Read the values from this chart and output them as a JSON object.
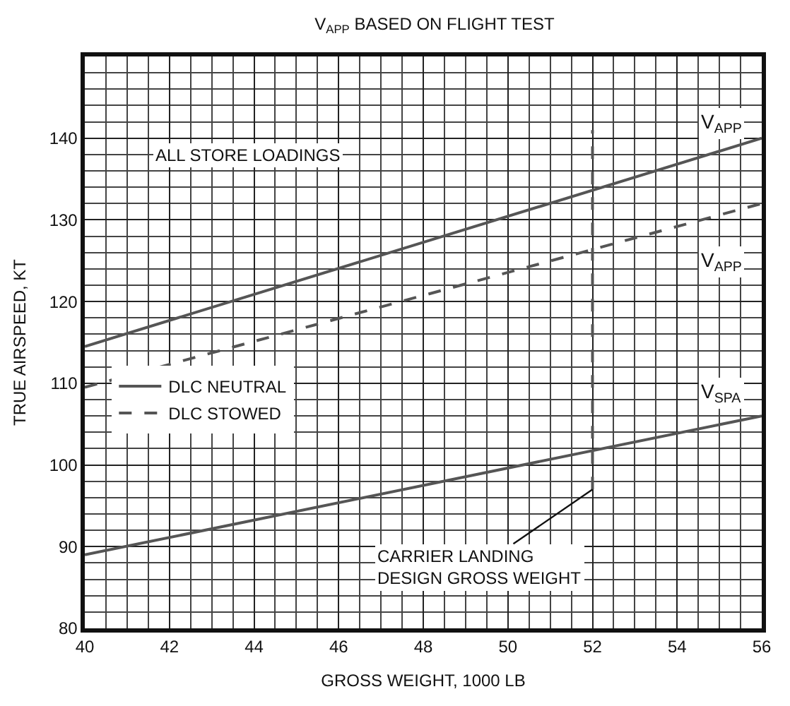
{
  "chart_data": {
    "type": "line",
    "title": "V$_{APP}$ BASED ON FLIGHT TEST",
    "xlabel": "GROSS WEIGHT, 1000 LB",
    "ylabel": "TRUE AIRSPEED, KT",
    "x": [
      40,
      56
    ],
    "series": [
      {
        "name": "DLC NEUTRAL",
        "color": "#555555",
        "values": [
          114.5,
          140
        ],
        "line_style": "solid"
      },
      {
        "name": "DLC STOWED",
        "color": "#555555",
        "values": [
          109.5,
          132
        ],
        "line_style": "dashed"
      },
      {
        "color": "#555555",
        "values": [
          89,
          106
        ],
        "line_style": "solid"
      },
      {
        "color": "#555555",
        "x": [
          52,
          52
        ],
        "values": [
          97,
          141
        ],
        "line_style": "dashed"
      }
    ],
    "xlim": [
      40,
      56
    ],
    "xticks": [
      40,
      42,
      44,
      46,
      48,
      50,
      52,
      54,
      56
    ],
    "ylim": [
      80,
      150
    ],
    "yticks": [
      80,
      90,
      100,
      110,
      120,
      130,
      140
    ],
    "grid": true,
    "legend": "left",
    "marker": "none",
    "annotations": [
      "ALL STORE LOADINGS",
      "V$_{APP}$",
      "V$_{APP}$",
      "V$_{SPA}$",
      {
        "text": "CARRIER LANDING\nDESIGN GROSS WEIGHT",
        "x": 52,
        "y": 97
      }
    ]
  }
}
